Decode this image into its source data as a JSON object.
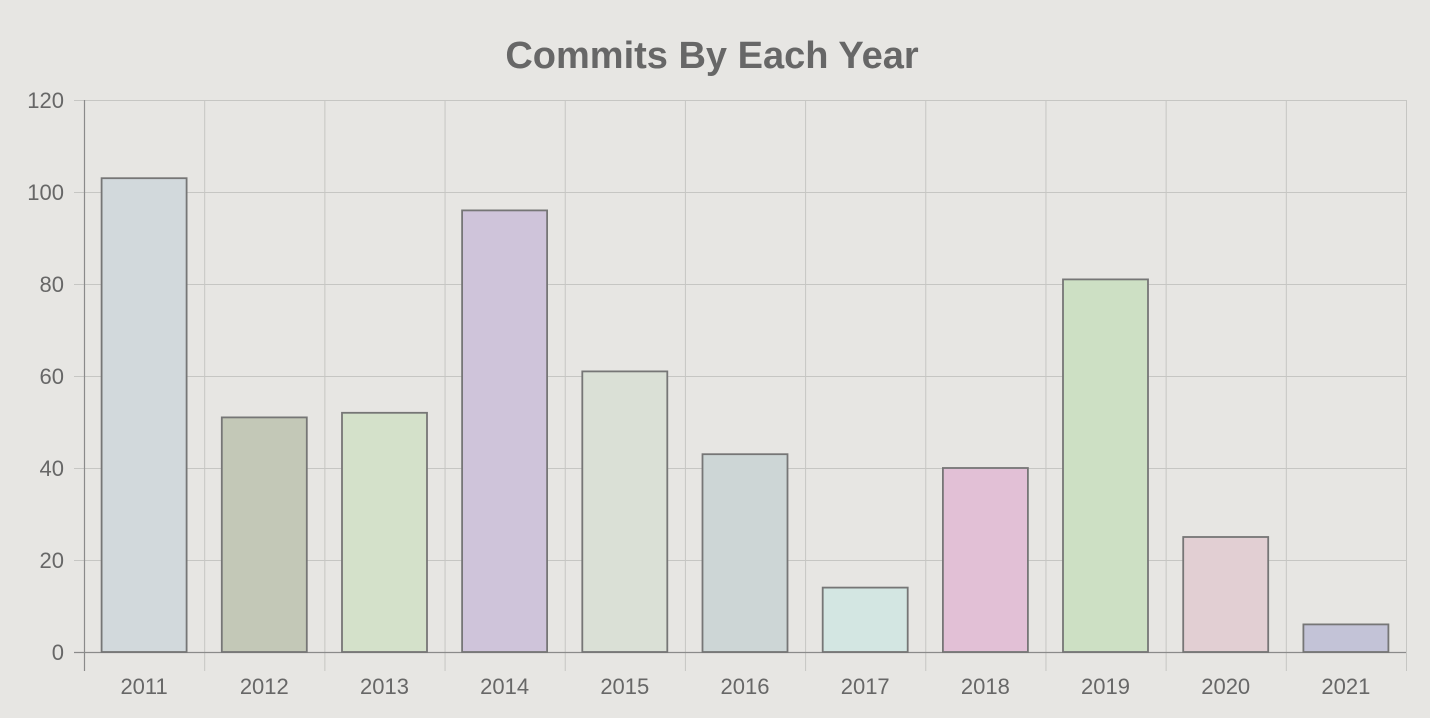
{
  "chart_data": {
    "type": "bar",
    "title": "Commits By Each Year",
    "xlabel": "",
    "ylabel": "",
    "categories": [
      "2011",
      "2012",
      "2013",
      "2014",
      "2015",
      "2016",
      "2017",
      "2018",
      "2019",
      "2020",
      "2021"
    ],
    "values": [
      103,
      51,
      52,
      96,
      61,
      43,
      14,
      40,
      81,
      25,
      6
    ],
    "ylim": [
      0,
      120
    ],
    "y_ticks": [
      0,
      20,
      40,
      60,
      80,
      100,
      120
    ],
    "grid": true,
    "legend": "none",
    "bar_colors": [
      "#d2d9dc",
      "#c3c8b7",
      "#d4e1ca",
      "#cfc4da",
      "#dae0d6",
      "#cdd6d6",
      "#d3e6e2",
      "#e2c0d6",
      "#cde0c4",
      "#e2cfd3",
      "#c3c3d7"
    ],
    "bar_border_color": "#767676",
    "grid_color": "#c6c6c3",
    "axis_color": "#8a8a8a",
    "text_color": "#676767",
    "background_color": "#e7e6e3"
  }
}
